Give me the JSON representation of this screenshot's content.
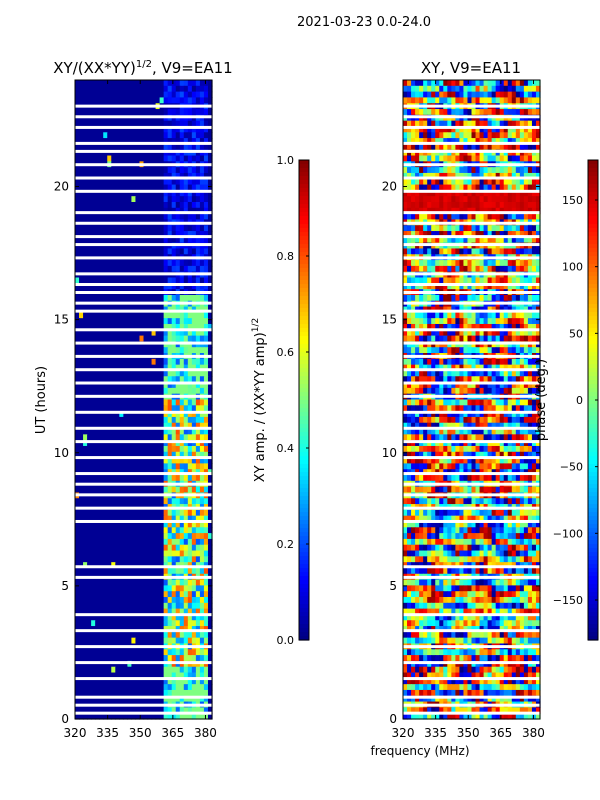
{
  "suptitle": "2021-03-23 0.0-24.0",
  "xlabel_shared": "frequency (MHz)",
  "chart_data": [
    {
      "type": "heatmap",
      "title": "XY/(XX*YY)^{1/2}, V9=EA11",
      "title_main": "XY/(XX*YY)",
      "title_sup": "1/2",
      "title_tail": ", V9=EA11",
      "ylabel": "UT (hours)",
      "xlim": [
        320,
        383
      ],
      "ylim": [
        0,
        24
      ],
      "xticks": [
        320,
        335,
        350,
        365,
        380
      ],
      "xtick_labels": [
        "320",
        "335",
        "350",
        "365",
        "380"
      ],
      "yticks": [
        0,
        5,
        10,
        15,
        20
      ],
      "ytick_labels": [
        "0",
        "5",
        "10",
        "15",
        "20"
      ],
      "colormap": "jet",
      "colorbar": {
        "label": "XY amp. / (XX*YY amp)^{1/2}",
        "label_main": "XY amp. / (XX*YY amp)",
        "label_sup": "1/2",
        "range": [
          0.0,
          1.0
        ],
        "ticks": [
          0.0,
          0.2,
          0.4,
          0.6,
          0.8,
          1.0
        ],
        "tick_labels": [
          "0.0",
          "0.2",
          "0.4",
          "0.6",
          "0.8",
          "1.0"
        ]
      },
      "background_value": 0.02,
      "signal_band_mhz": [
        360,
        382
      ],
      "signal_band_hours": [
        0.0,
        16.0
      ],
      "signal_band_value_range": [
        0.2,
        0.8
      ]
    },
    {
      "type": "heatmap",
      "title": "XY, V9=EA11",
      "ylabel": "",
      "xlim": [
        320,
        383
      ],
      "ylim": [
        0,
        24
      ],
      "xticks": [
        320,
        335,
        350,
        365,
        380
      ],
      "xtick_labels": [
        "320",
        "335",
        "350",
        "365",
        "380"
      ],
      "yticks": [
        0,
        5,
        10,
        15,
        20
      ],
      "ytick_labels": [
        "0",
        "5",
        "10",
        "15",
        "20"
      ],
      "colormap": "jet",
      "colorbar": {
        "label": "phase (deg.)",
        "range": [
          -180,
          180
        ],
        "ticks": [
          -150,
          -100,
          -50,
          0,
          50,
          100,
          150
        ],
        "tick_labels": [
          "−150",
          "−100",
          "−50",
          "0",
          "50",
          "100",
          "150"
        ]
      },
      "value_range": [
        -180,
        180
      ],
      "strong_band_hours": [
        19.0,
        19.8
      ],
      "strong_band_value": 150
    }
  ],
  "flagged_rows_hours": [
    0.2,
    0.5,
    0.8,
    1.5,
    2.1,
    2.7,
    3.3,
    3.9,
    5.3,
    5.7,
    7.4,
    7.9,
    8.4,
    8.8,
    9.2,
    9.8,
    10.4,
    10.9,
    11.5,
    12.1,
    12.6,
    13.1,
    13.6,
    14.1,
    14.6,
    15.3,
    15.6,
    16.0,
    16.3,
    16.7,
    17.3,
    17.8,
    18.1,
    18.6,
    19.0,
    19.8,
    20.3,
    20.8,
    21.3,
    21.6,
    22.2,
    22.6,
    23.0
  ]
}
